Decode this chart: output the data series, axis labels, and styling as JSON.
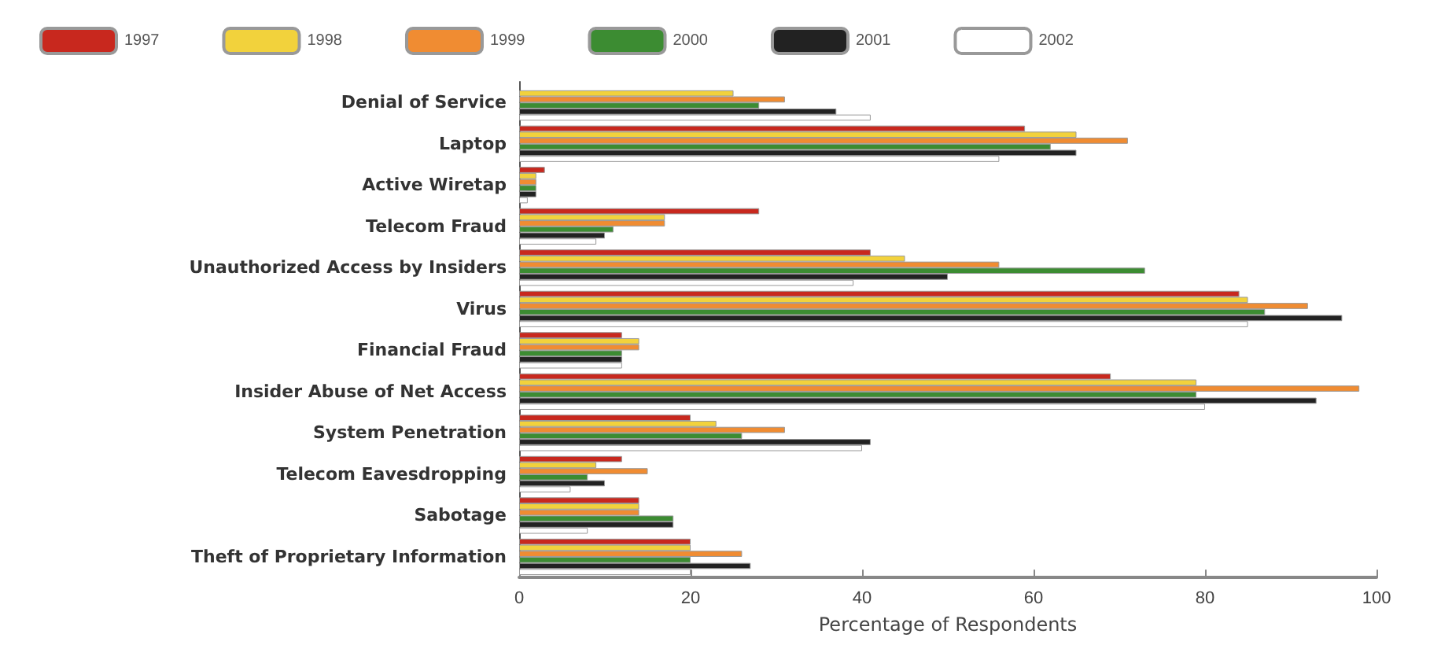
{
  "chart_data": {
    "type": "bar",
    "orientation": "horizontal",
    "xlabel": "Percentage of Respondents",
    "categories": [
      "Denial of Service",
      "Laptop",
      "Active Wiretap",
      "Telecom Fraud",
      "Unauthorized Access by Insiders",
      "Virus",
      "Financial Fraud",
      "Insider Abuse of Net Access",
      "System Penetration",
      "Telecom Eavesdropping",
      "Sabotage",
      "Theft of Proprietary Information"
    ],
    "series": [
      {
        "name": "1997",
        "color": "#c8281e",
        "values": [
          null,
          59,
          3,
          28,
          41,
          84,
          12,
          69,
          20,
          12,
          14,
          20
        ]
      },
      {
        "name": "1998",
        "color": "#f2d23c",
        "values": [
          25,
          65,
          2,
          17,
          45,
          85,
          14,
          79,
          23,
          9,
          14,
          20
        ]
      },
      {
        "name": "1999",
        "color": "#f08c32",
        "values": [
          31,
          71,
          2,
          17,
          56,
          92,
          14,
          98,
          31,
          15,
          14,
          26
        ]
      },
      {
        "name": "2000",
        "color": "#3c8c32",
        "values": [
          28,
          62,
          2,
          11,
          73,
          87,
          12,
          79,
          26,
          8,
          18,
          20
        ]
      },
      {
        "name": "2001",
        "color": "#222222",
        "values": [
          37,
          65,
          2,
          10,
          50,
          96,
          12,
          93,
          41,
          10,
          18,
          27
        ]
      },
      {
        "name": "2002",
        "color": "#ffffff",
        "values": [
          41,
          56,
          1,
          9,
          39,
          85,
          12,
          80,
          40,
          6,
          8,
          20
        ]
      }
    ],
    "xlim": [
      0,
      100
    ],
    "xticks": [
      0,
      20,
      40,
      60,
      80,
      100
    ],
    "grid": false,
    "legend": "top"
  }
}
